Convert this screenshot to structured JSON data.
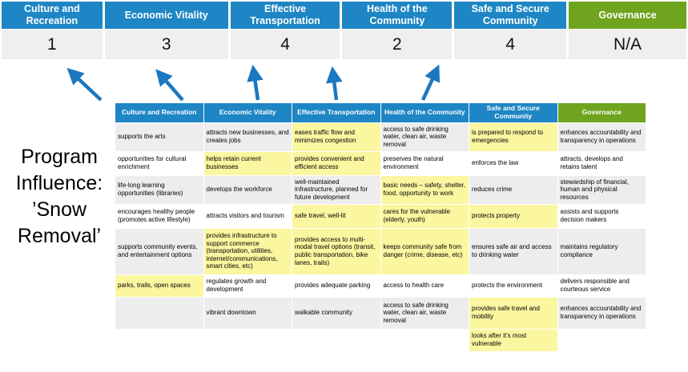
{
  "colors": {
    "header_blue": "#1E86C4",
    "header_green": "#6FA41E",
    "highlight_yellow": "#FBF6A0",
    "band_grey": "#EDEDED",
    "score_bg": "#EFEFEF",
    "arrow_blue": "#1B78C0"
  },
  "program_title": "Program\nInfluence:\n’Snow\nRemoval’",
  "scoreboard": {
    "columns": [
      {
        "label": "Culture and Recreation",
        "score": "1",
        "theme": "blue"
      },
      {
        "label": "Economic Vitality",
        "score": "3",
        "theme": "blue"
      },
      {
        "label": "Effective Transportation",
        "score": "4",
        "theme": "blue"
      },
      {
        "label": "Health of the Community",
        "score": "2",
        "theme": "blue"
      },
      {
        "label": "Safe and Secure Community",
        "score": "4",
        "theme": "blue"
      },
      {
        "label": "Governance",
        "score": "N/A",
        "theme": "green"
      }
    ]
  },
  "matrix": {
    "headers": [
      {
        "label": "Culture and Recreation",
        "theme": "blue"
      },
      {
        "label": "Economic Vitality",
        "theme": "blue"
      },
      {
        "label": "Effective Transportation",
        "theme": "blue"
      },
      {
        "label": "Health of the Community",
        "theme": "blue"
      },
      {
        "label": "Safe and Secure Community",
        "theme": "blue"
      },
      {
        "label": "Governance",
        "theme": "green"
      }
    ],
    "rows": [
      [
        {
          "text": "supports the arts",
          "highlighted": false
        },
        {
          "text": "attracts new businesses, and creates jobs",
          "highlighted": false
        },
        {
          "text": "eases traffic flow and minimizes congestion",
          "highlighted": true
        },
        {
          "text": "access to safe drinking water, clean air, waste removal",
          "highlighted": false
        },
        {
          "text": "is prepared to respond to emergencies",
          "highlighted": true
        },
        {
          "text": "enhances accountability and transparency in operations",
          "highlighted": false
        }
      ],
      [
        {
          "text": "opportunities for cultural enrichment",
          "highlighted": false
        },
        {
          "text": "helps retain current businesses",
          "highlighted": true
        },
        {
          "text": "provides convenient and efficient access",
          "highlighted": true
        },
        {
          "text": "preserves the natural environment",
          "highlighted": false
        },
        {
          "text": "enforces the law",
          "highlighted": false
        },
        {
          "text": "attracts, develops and retains talent",
          "highlighted": false
        }
      ],
      [
        {
          "text": "life-long learning opportunities (libraries)",
          "highlighted": false
        },
        {
          "text": "develops the workforce",
          "highlighted": false
        },
        {
          "text": "well-maintained infrastructure, planned for future development",
          "highlighted": false
        },
        {
          "text": "basic needs – safety, shelter, food, opportunity to work",
          "highlighted": true
        },
        {
          "text": "reduces crime",
          "highlighted": false
        },
        {
          "text": "stewardship of financial, human and physical resources",
          "highlighted": false
        }
      ],
      [
        {
          "text": "encourages healthy people (promotes active lifestyle)",
          "highlighted": false
        },
        {
          "text": "attracts visitors and tourism",
          "highlighted": false
        },
        {
          "text": "safe travel, well-lit",
          "highlighted": true
        },
        {
          "text": "cares for the vulnerable (elderly, youth)",
          "highlighted": true
        },
        {
          "text": "protects property",
          "highlighted": true
        },
        {
          "text": "assists and supports decision makers",
          "highlighted": false
        }
      ],
      [
        {
          "text": "supports community events, and entertainment options",
          "highlighted": false
        },
        {
          "text": "provides infrastructure to support commerce (transportation, utilities, internet/communications, smart cities, etc)",
          "highlighted": true
        },
        {
          "text": "provides access to multi-modal travel options (transit, public transportation, bike lanes, trails)",
          "highlighted": true
        },
        {
          "text": "keeps community safe from danger (crime, disease, etc)",
          "highlighted": true
        },
        {
          "text": "ensures safe air and access to drinking water",
          "highlighted": false
        },
        {
          "text": "maintains regulatory compliance",
          "highlighted": false
        }
      ],
      [
        {
          "text": "parks, trails, open spaces",
          "highlighted": true
        },
        {
          "text": "regulates growth and development",
          "highlighted": false
        },
        {
          "text": "provides adequate parking",
          "highlighted": false
        },
        {
          "text": "access to health care",
          "highlighted": false
        },
        {
          "text": "protects the environment",
          "highlighted": false
        },
        {
          "text": "delivers responsible and courteous service",
          "highlighted": false
        }
      ],
      [
        {
          "text": "",
          "highlighted": false
        },
        {
          "text": "vibrant downtown",
          "highlighted": false
        },
        {
          "text": "walkable community",
          "highlighted": false
        },
        {
          "text": "access to safe drinking water, clean air, waste removal",
          "highlighted": false
        },
        {
          "text": "provides safe travel and mobility",
          "highlighted": true
        },
        {
          "text": "enhances accountability and transparency in operations",
          "highlighted": false
        }
      ],
      [
        {
          "text": "",
          "highlighted": false
        },
        {
          "text": "",
          "highlighted": false
        },
        {
          "text": "",
          "highlighted": false
        },
        {
          "text": "",
          "highlighted": false
        },
        {
          "text": "looks after it's most vulnerable",
          "highlighted": true
        },
        {
          "text": "",
          "highlighted": false
        }
      ]
    ]
  }
}
